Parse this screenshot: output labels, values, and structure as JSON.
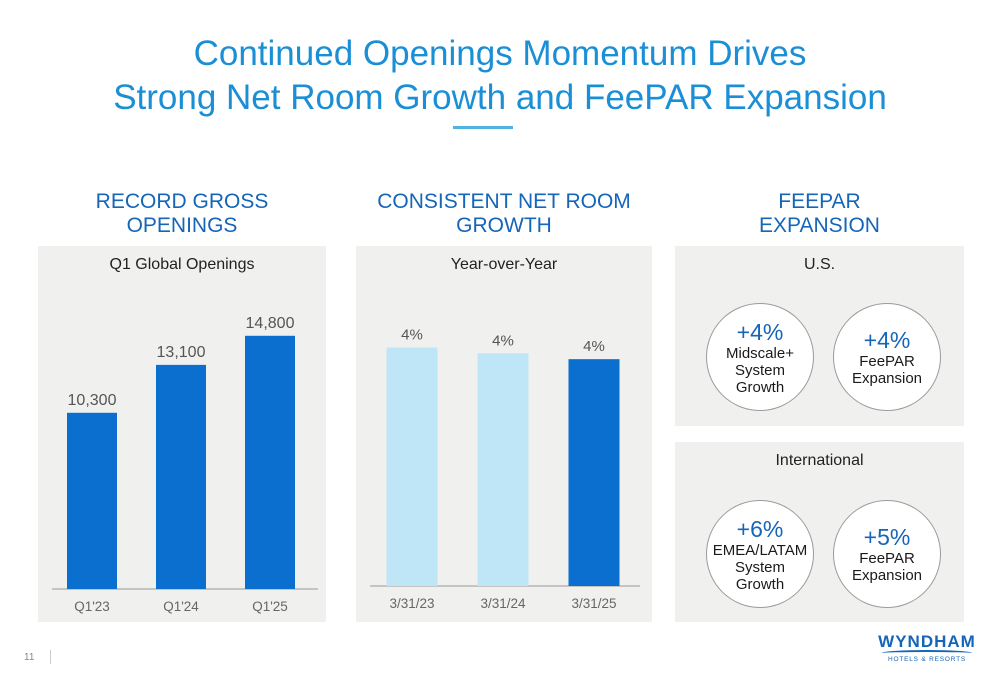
{
  "header": {
    "title_line1": "Continued Openings Momentum Drives",
    "title_line2": "Strong Net Room Growth and FeePAR Expansion"
  },
  "sections": {
    "openings_title_line1": "RECORD GROSS",
    "openings_title_line2": "OPENINGS",
    "growth_title_line1": "CONSISTENT NET ROOM",
    "growth_title_line2": "GROWTH",
    "feepar_title_line1": "FEEPAR",
    "feepar_title_line2": "EXPANSION"
  },
  "chart_data": [
    {
      "type": "bar",
      "subtitle": "Q1 Global Openings",
      "categories": [
        "Q1'23",
        "Q1'24",
        "Q1'25"
      ],
      "values": [
        10300,
        13100,
        14800
      ],
      "data_labels": [
        "10,300",
        "13,100",
        "14,800"
      ],
      "ylim": [
        0,
        16600
      ],
      "colors": [
        "#0a6fcf",
        "#0a6fcf",
        "#0a6fcf"
      ]
    },
    {
      "type": "bar",
      "subtitle": "Year-over-Year",
      "categories": [
        "3/31/23",
        "3/31/24",
        "3/31/25"
      ],
      "values": [
        4.1,
        4.0,
        3.9
      ],
      "data_labels": [
        "4%",
        "4%",
        "4%"
      ],
      "ylim": [
        0,
        4.9
      ],
      "colors": [
        "#bfe6f6",
        "#bfe6f6",
        "#0a6fcf"
      ]
    }
  ],
  "feepar": {
    "us": {
      "label": "U.S.",
      "metrics": [
        {
          "value": "+4%",
          "line1": "Midscale+",
          "line2": "System",
          "line3": "Growth"
        },
        {
          "value": "+4%",
          "line1": "FeePAR",
          "line2": "Expansion"
        }
      ]
    },
    "international": {
      "label": "International",
      "metrics": [
        {
          "value": "+6%",
          "line1": "EMEA/LATAM",
          "line2": "System",
          "line3": "Growth"
        },
        {
          "value": "+5%",
          "line1": "FeePAR",
          "line2": "Expansion"
        }
      ]
    }
  },
  "footer": {
    "page_number": "11",
    "logo_word": "WYNDHAM",
    "logo_tagline": "HOTELS & RESORTS"
  },
  "colors": {
    "title": "#1b8fd6",
    "section_title": "#1565b8",
    "bar_dark": "#0a6fcf",
    "bar_light": "#bfe6f6",
    "panel_bg": "#f0f0ef"
  }
}
